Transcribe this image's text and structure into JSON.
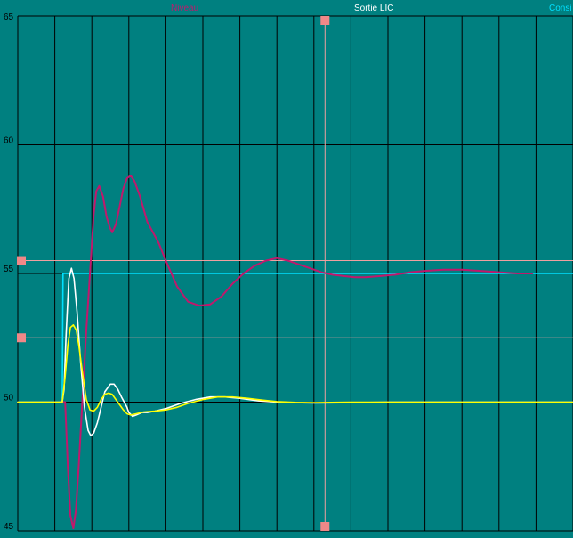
{
  "colors": {
    "background": "#008080",
    "grid": "#000000",
    "niveau": "#c0186c",
    "sortie": "#ffffff",
    "consigne": "#00e0ff",
    "mesure": "#ffff00",
    "cursor": "#f0a0a0",
    "marker": "#f08888"
  },
  "legend": {
    "niveau": "Niveau",
    "sortie": "Sortie LIC",
    "consigne": "Consi"
  },
  "chart_data": {
    "type": "line",
    "ylim": [
      45,
      65
    ],
    "y_ticks": [
      "45",
      "50",
      "55",
      "60",
      "65"
    ],
    "x_divisions": 15,
    "xlim": [
      0,
      15
    ],
    "grid": true,
    "cursor_x": 8.3,
    "limit_high": 55.5,
    "limit_low": 52.5,
    "series": [
      {
        "key": "niveau",
        "name": "Niveau",
        "points": [
          [
            1.2,
            50
          ],
          [
            1.28,
            50
          ],
          [
            1.35,
            47.5
          ],
          [
            1.42,
            45.6
          ],
          [
            1.5,
            45.1
          ],
          [
            1.57,
            45.8
          ],
          [
            1.65,
            47.6
          ],
          [
            1.75,
            50.2
          ],
          [
            1.85,
            52.8
          ],
          [
            1.95,
            55
          ],
          [
            2.05,
            57.3
          ],
          [
            2.12,
            58.2
          ],
          [
            2.2,
            58.4
          ],
          [
            2.3,
            58
          ],
          [
            2.4,
            57.2
          ],
          [
            2.48,
            56.8
          ],
          [
            2.55,
            56.6
          ],
          [
            2.65,
            56.9
          ],
          [
            2.75,
            57.6
          ],
          [
            2.85,
            58.3
          ],
          [
            2.95,
            58.7
          ],
          [
            3.05,
            58.8
          ],
          [
            3.15,
            58.6
          ],
          [
            3.3,
            58
          ],
          [
            3.5,
            57
          ],
          [
            3.8,
            56.2
          ],
          [
            4.0,
            55.5
          ],
          [
            4.3,
            54.5
          ],
          [
            4.6,
            53.9
          ],
          [
            4.9,
            53.75
          ],
          [
            5.2,
            53.8
          ],
          [
            5.5,
            54.1
          ],
          [
            5.8,
            54.6
          ],
          [
            6.1,
            55.0
          ],
          [
            6.4,
            55.3
          ],
          [
            6.7,
            55.5
          ],
          [
            7.0,
            55.6
          ],
          [
            7.3,
            55.5
          ],
          [
            7.6,
            55.35
          ],
          [
            7.9,
            55.2
          ],
          [
            8.2,
            55.05
          ],
          [
            8.5,
            54.95
          ],
          [
            8.8,
            54.9
          ],
          [
            9.1,
            54.85
          ],
          [
            9.4,
            54.85
          ],
          [
            9.8,
            54.9
          ],
          [
            10.2,
            54.95
          ],
          [
            10.6,
            55.05
          ],
          [
            11.0,
            55.1
          ],
          [
            11.5,
            55.15
          ],
          [
            12.0,
            55.15
          ],
          [
            12.5,
            55.1
          ],
          [
            13.0,
            55.05
          ],
          [
            13.5,
            55.0
          ],
          [
            13.9,
            55.0
          ]
        ]
      },
      {
        "key": "sortie",
        "name": "Sortie LIC",
        "points": [
          [
            0,
            50
          ],
          [
            1.2,
            50
          ],
          [
            1.25,
            50.5
          ],
          [
            1.3,
            52.5
          ],
          [
            1.38,
            54.8
          ],
          [
            1.45,
            55.2
          ],
          [
            1.52,
            54.8
          ],
          [
            1.6,
            53.5
          ],
          [
            1.7,
            51.5
          ],
          [
            1.8,
            49.8
          ],
          [
            1.9,
            48.9
          ],
          [
            1.97,
            48.7
          ],
          [
            2.05,
            48.8
          ],
          [
            2.15,
            49.2
          ],
          [
            2.25,
            49.8
          ],
          [
            2.35,
            50.4
          ],
          [
            2.5,
            50.7
          ],
          [
            2.6,
            50.7
          ],
          [
            2.7,
            50.5
          ],
          [
            2.8,
            50.2
          ],
          [
            2.95,
            49.8
          ],
          [
            3.0,
            49.6
          ],
          [
            3.1,
            49.45
          ],
          [
            3.2,
            49.5
          ],
          [
            3.35,
            49.6
          ],
          [
            3.5,
            49.6
          ],
          [
            3.7,
            49.65
          ],
          [
            4.0,
            49.75
          ],
          [
            4.4,
            49.95
          ],
          [
            4.8,
            50.1
          ],
          [
            5.2,
            50.2
          ],
          [
            5.6,
            50.2
          ],
          [
            6.0,
            50.15
          ],
          [
            6.5,
            50.05
          ],
          [
            7.0,
            50.0
          ],
          [
            7.5,
            49.98
          ],
          [
            8.0,
            49.97
          ],
          [
            9.0,
            49.98
          ],
          [
            10.0,
            50.0
          ],
          [
            12.0,
            50.0
          ],
          [
            15.0,
            50.0
          ]
        ]
      },
      {
        "key": "consigne",
        "name": "Consi",
        "points": [
          [
            1.2,
            50
          ],
          [
            1.22,
            55
          ],
          [
            15.0,
            55
          ]
        ]
      },
      {
        "key": "mesure",
        "name": "",
        "points": [
          [
            0,
            50
          ],
          [
            1.2,
            50
          ],
          [
            1.28,
            51
          ],
          [
            1.35,
            52.2
          ],
          [
            1.42,
            52.9
          ],
          [
            1.5,
            53.0
          ],
          [
            1.58,
            52.8
          ],
          [
            1.65,
            52.2
          ],
          [
            1.75,
            51.1
          ],
          [
            1.85,
            50.1
          ],
          [
            1.95,
            49.7
          ],
          [
            2.05,
            49.65
          ],
          [
            2.15,
            49.8
          ],
          [
            2.25,
            50.1
          ],
          [
            2.35,
            50.3
          ],
          [
            2.45,
            50.35
          ],
          [
            2.55,
            50.3
          ],
          [
            2.65,
            50.1
          ],
          [
            2.75,
            49.9
          ],
          [
            2.85,
            49.7
          ],
          [
            2.95,
            49.55
          ],
          [
            3.05,
            49.5
          ],
          [
            3.2,
            49.55
          ],
          [
            3.4,
            49.62
          ],
          [
            3.7,
            49.65
          ],
          [
            4.0,
            49.7
          ],
          [
            4.3,
            49.8
          ],
          [
            4.6,
            49.95
          ],
          [
            5.0,
            50.1
          ],
          [
            5.4,
            50.2
          ],
          [
            5.8,
            50.2
          ],
          [
            6.2,
            50.15
          ],
          [
            6.6,
            50.08
          ],
          [
            7.0,
            50.02
          ],
          [
            7.5,
            49.99
          ],
          [
            8.0,
            49.98
          ],
          [
            9.0,
            50.0
          ],
          [
            10.0,
            50.0
          ],
          [
            12.0,
            50.0
          ],
          [
            15.0,
            50.0
          ]
        ]
      }
    ]
  }
}
